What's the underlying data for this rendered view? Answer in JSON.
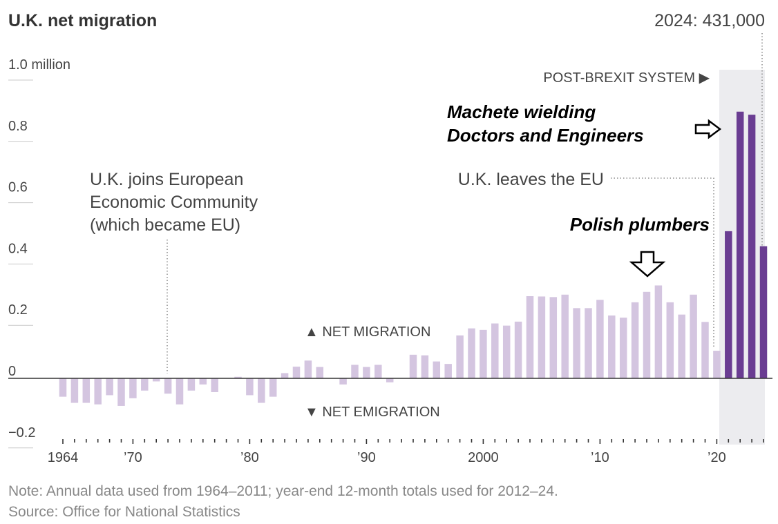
{
  "chart_data": {
    "type": "bar",
    "title": "U.K. net migration",
    "ylim": [
      -0.2,
      1.0
    ],
    "y_ticks": [
      {
        "value": 1.0,
        "label": "1.0 million"
      },
      {
        "value": 0.8,
        "label": "0.8"
      },
      {
        "value": 0.6,
        "label": "0.6"
      },
      {
        "value": 0.4,
        "label": "0.4"
      },
      {
        "value": 0.2,
        "label": "0.2"
      },
      {
        "value": 0,
        "label": "0"
      },
      {
        "value": -0.2,
        "label": "−0.2"
      }
    ],
    "x_ticks": [
      {
        "year": 1964,
        "label": "1964"
      },
      {
        "year": 1970,
        "label": "’70"
      },
      {
        "year": 1980,
        "label": "’80"
      },
      {
        "year": 1990,
        "label": "’90"
      },
      {
        "year": 2000,
        "label": "2000"
      },
      {
        "year": 2010,
        "label": "’10"
      },
      {
        "year": 2020,
        "label": "’20"
      }
    ],
    "series": [
      {
        "name": "Net migration",
        "values": [
          {
            "year": 1964,
            "value": -0.06
          },
          {
            "year": 1965,
            "value": -0.08
          },
          {
            "year": 1966,
            "value": -0.08
          },
          {
            "year": 1967,
            "value": -0.085
          },
          {
            "year": 1968,
            "value": -0.055
          },
          {
            "year": 1969,
            "value": -0.09
          },
          {
            "year": 1970,
            "value": -0.065
          },
          {
            "year": 1971,
            "value": -0.04
          },
          {
            "year": 1972,
            "value": -0.01
          },
          {
            "year": 1973,
            "value": -0.05
          },
          {
            "year": 1974,
            "value": -0.085
          },
          {
            "year": 1975,
            "value": -0.04
          },
          {
            "year": 1976,
            "value": -0.02
          },
          {
            "year": 1977,
            "value": -0.045
          },
          {
            "year": 1978,
            "value": 0.0
          },
          {
            "year": 1979,
            "value": 0.005
          },
          {
            "year": 1980,
            "value": -0.055
          },
          {
            "year": 1981,
            "value": -0.08
          },
          {
            "year": 1982,
            "value": -0.06
          },
          {
            "year": 1983,
            "value": 0.017
          },
          {
            "year": 1984,
            "value": 0.038
          },
          {
            "year": 1985,
            "value": 0.058
          },
          {
            "year": 1986,
            "value": 0.037
          },
          {
            "year": 1987,
            "value": 0.0
          },
          {
            "year": 1988,
            "value": -0.02
          },
          {
            "year": 1989,
            "value": 0.044
          },
          {
            "year": 1990,
            "value": 0.037
          },
          {
            "year": 1991,
            "value": 0.044
          },
          {
            "year": 1992,
            "value": -0.013
          },
          {
            "year": 1993,
            "value": 0.0
          },
          {
            "year": 1994,
            "value": 0.077
          },
          {
            "year": 1995,
            "value": 0.075
          },
          {
            "year": 1996,
            "value": 0.055
          },
          {
            "year": 1997,
            "value": 0.047
          },
          {
            "year": 1998,
            "value": 0.14
          },
          {
            "year": 1999,
            "value": 0.163
          },
          {
            "year": 2000,
            "value": 0.158
          },
          {
            "year": 2001,
            "value": 0.179
          },
          {
            "year": 2002,
            "value": 0.172
          },
          {
            "year": 2003,
            "value": 0.185
          },
          {
            "year": 2004,
            "value": 0.268
          },
          {
            "year": 2005,
            "value": 0.267
          },
          {
            "year": 2006,
            "value": 0.265
          },
          {
            "year": 2007,
            "value": 0.273
          },
          {
            "year": 2008,
            "value": 0.229
          },
          {
            "year": 2009,
            "value": 0.229
          },
          {
            "year": 2010,
            "value": 0.256
          },
          {
            "year": 2011,
            "value": 0.205
          },
          {
            "year": 2012,
            "value": 0.198
          },
          {
            "year": 2013,
            "value": 0.248
          },
          {
            "year": 2014,
            "value": 0.282
          },
          {
            "year": 2015,
            "value": 0.303
          },
          {
            "year": 2016,
            "value": 0.248
          },
          {
            "year": 2017,
            "value": 0.208
          },
          {
            "year": 2018,
            "value": 0.273
          },
          {
            "year": 2019,
            "value": 0.184
          },
          {
            "year": 2020,
            "value": 0.09
          },
          {
            "year": 2021,
            "value": 0.48
          },
          {
            "year": 2022,
            "value": 0.87
          },
          {
            "year": 2023,
            "value": 0.86
          },
          {
            "year": 2024,
            "value": 0.431
          }
        ]
      }
    ],
    "colors": {
      "pre_brexit": "#d4c5e0",
      "post_brexit": "#6a3d92",
      "shade": "#ececef",
      "axis": "#333333",
      "grid": "#c8c8c8"
    },
    "annotations": {
      "latest": "2024: 431,000",
      "post_brexit": "POST-BREXIT SYSTEM ▶",
      "joins_eec": [
        "U.K. joins European",
        "Economic Community",
        "(which became EU)"
      ],
      "leaves_eu": "U.K. leaves the EU",
      "net_migration": "▲ NET MIGRATION",
      "net_emigration": "▼ NET EMIGRATION"
    },
    "overlay_text": {
      "machete": [
        "Machete wielding",
        "Doctors and Engineers"
      ],
      "polish": "Polish plumbers"
    }
  },
  "footer": {
    "note": "Note: Annual data used from 1964–2011; year-end 12-month totals used for 2012–24.",
    "source": "Source: Office for National Statistics"
  }
}
